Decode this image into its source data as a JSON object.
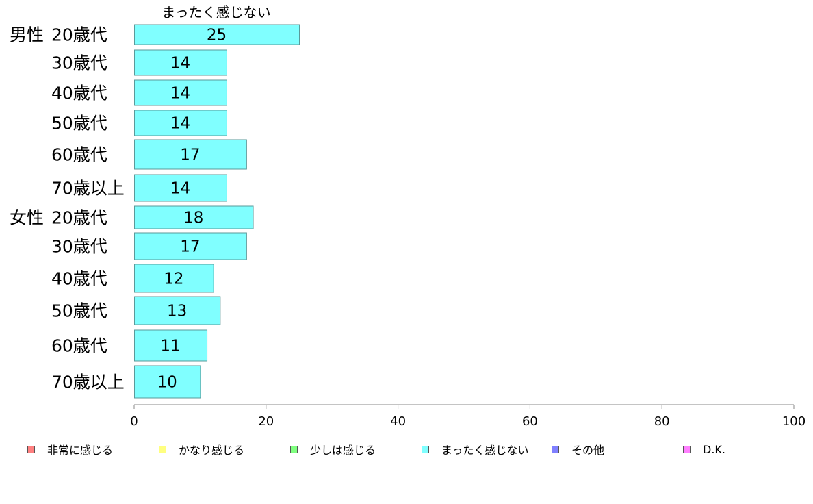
{
  "chart_data": {
    "type": "bar",
    "orientation": "horizontal",
    "stacked": true,
    "series_heading": "まったく感じない",
    "groups": [
      {
        "name": "男性",
        "categories": [
          "20歳代",
          "30歳代",
          "40歳代",
          "50歳代",
          "60歳代",
          "70歳以上"
        ]
      },
      {
        "name": "女性",
        "categories": [
          "20歳代",
          "30歳代",
          "40歳代",
          "50歳代",
          "60歳代",
          "70歳以上"
        ]
      }
    ],
    "series": [
      {
        "name": "非常に感じる",
        "color": "#ff8080",
        "values": []
      },
      {
        "name": "かなり感じる",
        "color": "#ffff80",
        "values": []
      },
      {
        "name": "少しは感じる",
        "color": "#80ff80",
        "values": []
      },
      {
        "name": "まったく感じない",
        "color": "#80ffff",
        "values": [
          25,
          14,
          14,
          14,
          17,
          14,
          18,
          17,
          12,
          13,
          11,
          10
        ]
      },
      {
        "name": "その他",
        "color": "#8080ff",
        "values": []
      },
      {
        "name": "D.K.",
        "color": "#ff80ff",
        "values": []
      }
    ],
    "xlim": [
      0,
      100
    ],
    "xticks": [
      0,
      20,
      40,
      60,
      80,
      100
    ],
    "legend_position": "bottom"
  }
}
